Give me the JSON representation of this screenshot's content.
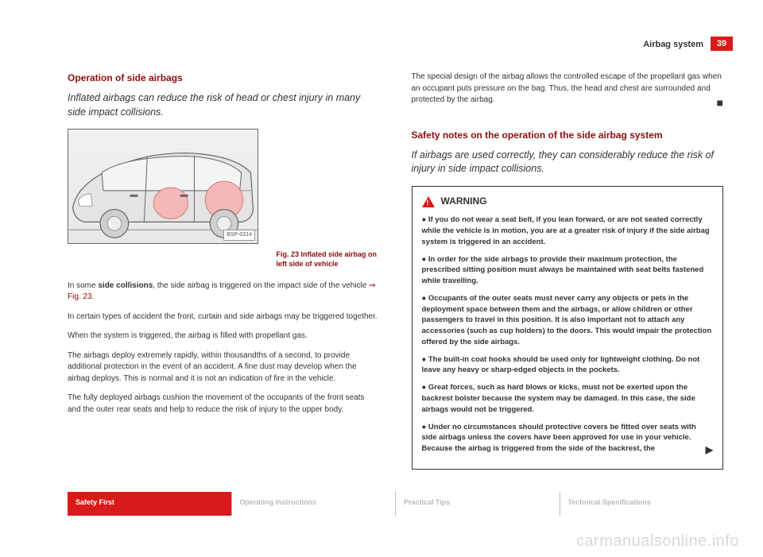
{
  "page_number": "39",
  "header_section": "Airbag system",
  "left": {
    "heading": "Operation of side airbags",
    "intro": "Inflated airbags can reduce the risk of head or chest injury in many side impact collisions.",
    "figure": {
      "id_label": "BSP-0314",
      "caption": "Fig. 23   Inflated side airbag on left side of vehicle",
      "airbag_color": "#f5b8b8",
      "car_body_color": "#dcdcdc",
      "line_color": "#666666"
    },
    "para1_a": "In some ",
    "para1_b_bold": "side collisions",
    "para1_c": ", the side airbag is triggered on the impact side of the vehicle ",
    "para1_ref": "⇒ Fig. 23",
    "para1_d": ".",
    "para2": "In certain types of accident the front, curtain and side airbags may be triggered together.",
    "para3": "When the system is triggered, the airbag is filled with propellant gas.",
    "para4": "The airbags deploy extremely rapidly, within thousandths of a second, to provide additional protection in the event of an accident. A fine dust may develop when the airbag deploys. This is normal and it is not an indication of fire in the vehicle.",
    "para5": "The fully deployed airbags cushion the movement of the occupants of the front seats and the outer rear seats and help to reduce the risk of injury to the upper body."
  },
  "right": {
    "top_para": "The special design of the airbag allows the controlled escape of the propellant gas when an occupant puts pressure on the bag. Thus, the head and chest are surrounded and protected by the airbag.",
    "end_mark": "■",
    "heading": "Safety notes on the operation of the side airbag system",
    "intro": "If airbags are used correctly, they can considerably reduce the risk of injury in side impact collisions.",
    "warning_label": "WARNING",
    "bullets": [
      "If you do not wear a seat belt, if you lean forward, or are not seated correctly while the vehicle is in motion, you are at a greater risk of injury if the side airbag system is triggered in an accident.",
      "In order for the side airbags to provide their maximum protection, the prescribed sitting position must always be maintained with seat belts fastened while travelling.",
      "Occupants of the outer seats must never carry any objects or pets in the deployment space between them and the airbags, or allow children or other passengers to travel in this position. It is also important not to attach any accessories (such as cup holders) to the doors. This would impair the protection offered by the side airbags.",
      "The built-in coat hooks should be used only for lightweight clothing. Do not leave any heavy or sharp-edged objects in the pockets.",
      "Great forces, such as hard blows or kicks, must not be exerted upon the backrest bolster because the system may be damaged. In this case, the side airbags would not be triggered.",
      "Under no circumstances should protective covers be fitted over seats with side airbags unless the covers have been approved for use in your vehicle. Because the airbag is triggered from the side of the backrest, the"
    ],
    "continue_mark": "▶"
  },
  "tabs": [
    "Safety First",
    "Operating instructions",
    "Practical Tips",
    "Technical Specifications"
  ],
  "watermark": "carmanualsonline.info"
}
